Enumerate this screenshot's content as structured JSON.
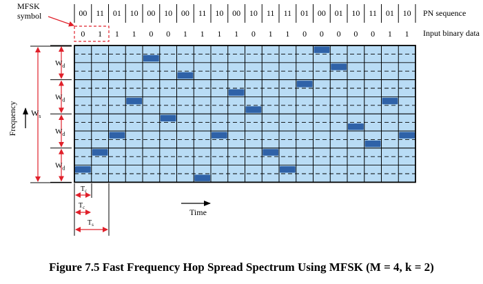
{
  "labels": {
    "mfsk_symbol_line1": "MFSK",
    "mfsk_symbol_line2": "symbol",
    "pn_sequence": "PN sequence",
    "input_binary_data": "Input binary data",
    "frequency": "Frequency",
    "time": "Time",
    "ws": "Ws",
    "wd": "Wd",
    "tc": "Tc",
    "ts": "Ts",
    "t": "T"
  },
  "pn_sequence": [
    "00",
    "11",
    "01",
    "10",
    "00",
    "10",
    "00",
    "11",
    "10",
    "00",
    "10",
    "11",
    "11",
    "01",
    "00",
    "01",
    "10",
    "11",
    "01",
    "10"
  ],
  "input_bits": [
    "0",
    "1",
    "1",
    "1",
    "0",
    "0",
    "1",
    "1",
    "1",
    "1",
    "0",
    "1",
    "1",
    "0",
    "0",
    "0",
    "0",
    "0",
    "1",
    "1"
  ],
  "hop_tones": [
    14,
    12,
    10,
    6,
    1,
    8,
    3,
    15,
    10,
    5,
    7,
    12,
    14,
    4,
    0,
    2,
    9,
    11,
    6,
    10
  ],
  "caption": "Figure 7.5  Fast Frequency Hop Spread Spectrum Using MFSK (M = 4, k = 2)",
  "colors": {
    "grid_fill": "#b9dcf5",
    "hop_fill": "#2f62a8",
    "annotation": "#e0202a"
  }
}
